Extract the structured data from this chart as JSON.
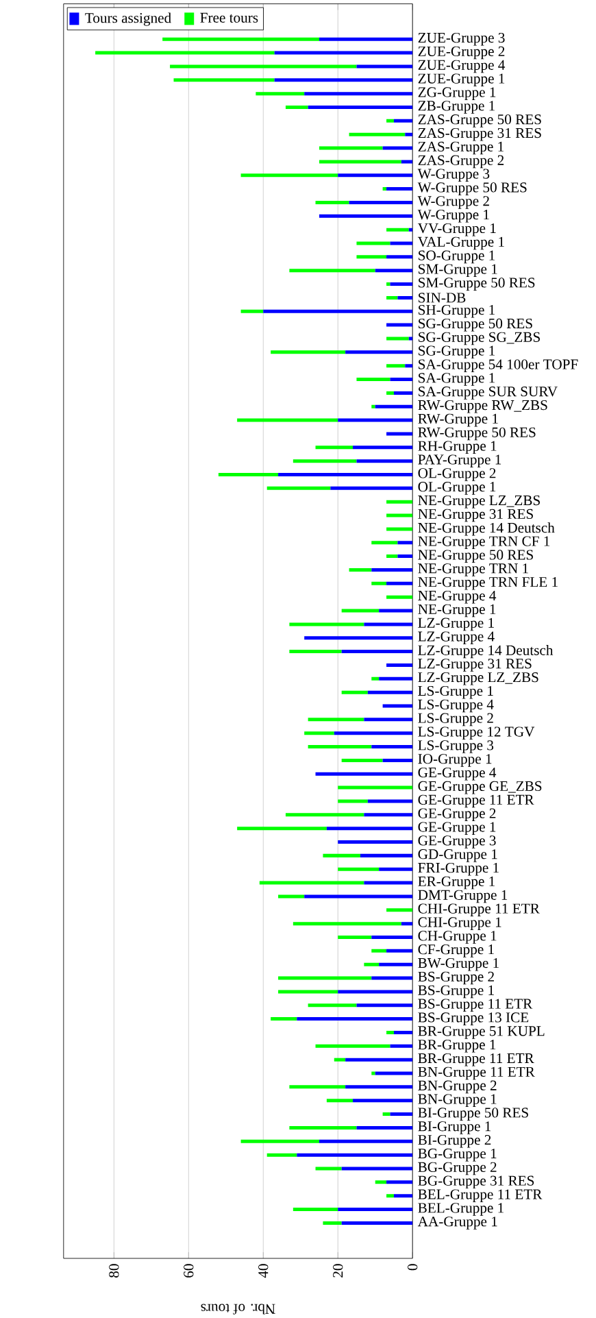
{
  "chart_data": {
    "type": "bar",
    "orientation": "horizontal",
    "stacked": true,
    "xlabel": "Nbr. of tours",
    "categories": [
      "ZUE-Gruppe 3",
      "ZUE-Gruppe 2",
      "ZUE-Gruppe 4",
      "ZUE-Gruppe 1",
      "ZG-Gruppe 1",
      "ZB-Gruppe 1",
      "ZAS-Gruppe 50 RES",
      "ZAS-Gruppe 31 RES",
      "ZAS-Gruppe 1",
      "ZAS-Gruppe 2",
      "W-Gruppe 3",
      "W-Gruppe 50 RES",
      "W-Gruppe 2",
      "W-Gruppe 1",
      "VV-Gruppe 1",
      "VAL-Gruppe 1",
      "SO-Gruppe 1",
      "SM-Gruppe 1",
      "SM-Gruppe 50 RES",
      "SIN-DB",
      "SH-Gruppe 1",
      "SG-Gruppe 50 RES",
      "SG-Gruppe SG_ZBS",
      "SG-Gruppe 1",
      "SA-Gruppe 54 100er TOPF",
      "SA-Gruppe 1",
      "SA-Gruppe SUR SURV",
      "RW-Gruppe RW_ZBS",
      "RW-Gruppe 1",
      "RW-Gruppe 50 RES",
      "RH-Gruppe 1",
      "PAY-Gruppe 1",
      "OL-Gruppe 2",
      "OL-Gruppe 1",
      "NE-Gruppe LZ_ZBS",
      "NE-Gruppe 31 RES",
      "NE-Gruppe 14 Deutsch",
      "NE-Gruppe TRN CF 1",
      "NE-Gruppe 50 RES",
      "NE-Gruppe TRN 1",
      "NE-Gruppe TRN FLE 1",
      "NE-Gruppe 4",
      "NE-Gruppe 1",
      "LZ-Gruppe 1",
      "LZ-Gruppe 4",
      "LZ-Gruppe 14 Deutsch",
      "LZ-Gruppe 31 RES",
      "LZ-Gruppe LZ_ZBS",
      "LS-Gruppe 1",
      "LS-Gruppe 4",
      "LS-Gruppe 2",
      "LS-Gruppe 12 TGV",
      "LS-Gruppe 3",
      "IO-Gruppe 1",
      "GE-Gruppe 4",
      "GE-Gruppe GE_ZBS",
      "GE-Gruppe 11 ETR",
      "GE-Gruppe 2",
      "GE-Gruppe 1",
      "GE-Gruppe 3",
      "GD-Gruppe 1",
      "FRI-Gruppe 1",
      "ER-Gruppe 1",
      "DMT-Gruppe 1",
      "CHI-Gruppe 11 ETR",
      "CHI-Gruppe 1",
      "CH-Gruppe 1",
      "CF-Gruppe 1",
      "BW-Gruppe 1",
      "BS-Gruppe 2",
      "BS-Gruppe 1",
      "BS-Gruppe 11 ETR",
      "BS-Gruppe 13 ICE",
      "BR-Gruppe 51 KUPL",
      "BR-Gruppe 1",
      "BR-Gruppe 11 ETR",
      "BN-Gruppe 11 ETR",
      "BN-Gruppe 2",
      "BN-Gruppe 1",
      "BI-Gruppe 50 RES",
      "BI-Gruppe 1",
      "BI-Gruppe 2",
      "BG-Gruppe 1",
      "BG-Gruppe 2",
      "BG-Gruppe 31 RES",
      "BEL-Gruppe 11 ETR",
      "BEL-Gruppe 1",
      "AA-Gruppe 1"
    ],
    "series": [
      {
        "name": "Tours assigned",
        "color": "#0000ff",
        "values": [
          25,
          37,
          15,
          37,
          29,
          28,
          5,
          2,
          8,
          3,
          20,
          7,
          17,
          25,
          1,
          6,
          7,
          10,
          6,
          4,
          40,
          7,
          1,
          18,
          2,
          6,
          5,
          10,
          20,
          7,
          16,
          15,
          36,
          22,
          0,
          0,
          0,
          4,
          4,
          11,
          7,
          0,
          9,
          13,
          29,
          19,
          7,
          9,
          12,
          8,
          13,
          21,
          11,
          8,
          26,
          0,
          12,
          13,
          23,
          20,
          14,
          9,
          13,
          29,
          0,
          3,
          11,
          7,
          9,
          11,
          20,
          15,
          31,
          5,
          6,
          18,
          10,
          18,
          16,
          6,
          15,
          25,
          31,
          19,
          7,
          5,
          20,
          19
        ]
      },
      {
        "name": "Free tours",
        "color": "#00ff00",
        "values": [
          42,
          48,
          50,
          27,
          13,
          6,
          2,
          15,
          17,
          22,
          26,
          1,
          9,
          0,
          6,
          9,
          8,
          23,
          1,
          3,
          6,
          0,
          6,
          20,
          5,
          9,
          2,
          1,
          27,
          0,
          10,
          17,
          16,
          17,
          7,
          7,
          7,
          7,
          3,
          6,
          4,
          7,
          10,
          20,
          0,
          14,
          0,
          2,
          7,
          0,
          15,
          8,
          17,
          11,
          0,
          20,
          8,
          21,
          24,
          0,
          10,
          11,
          28,
          7,
          7,
          29,
          9,
          4,
          4,
          25,
          16,
          13,
          7,
          2,
          20,
          3,
          1,
          15,
          7,
          2,
          18,
          21,
          8,
          7,
          3,
          2,
          12,
          5
        ]
      }
    ],
    "xlim": [
      93.5,
      0
    ],
    "xticks": [
      0,
      20,
      40,
      60,
      80
    ],
    "grid": "x",
    "legend": "top left"
  }
}
